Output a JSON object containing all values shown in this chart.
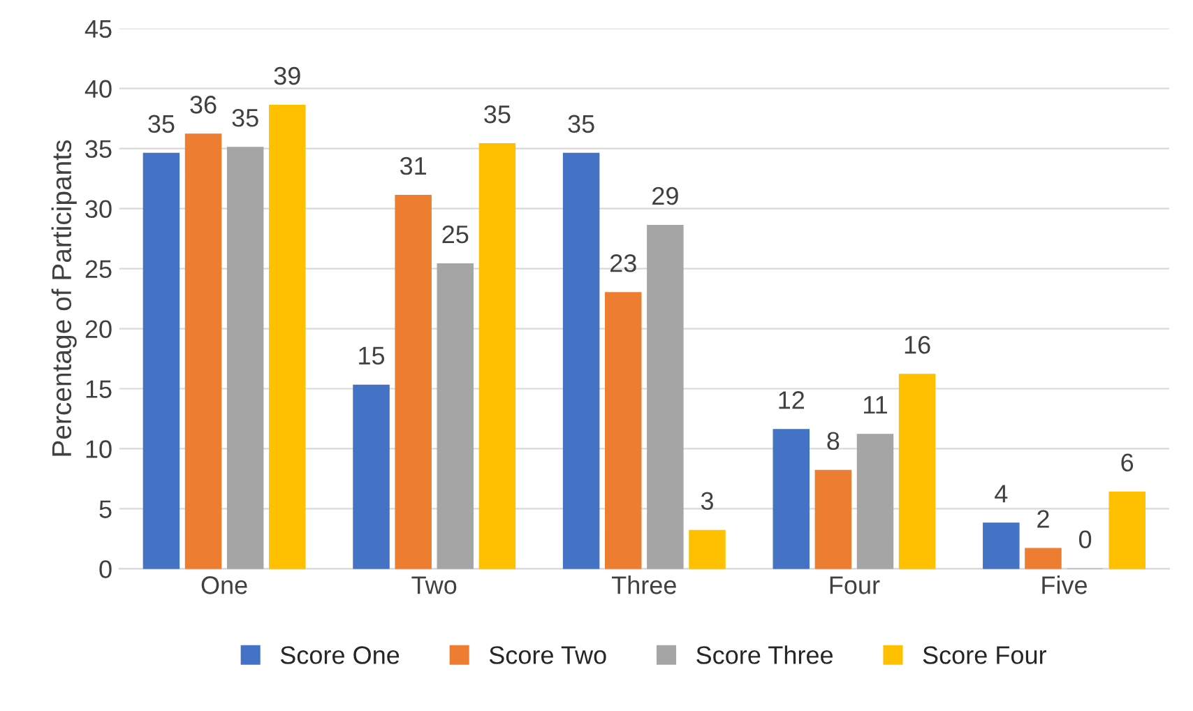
{
  "chart_data": {
    "type": "bar",
    "ylabel": "Percentage of Participants",
    "categories": [
      "One",
      "Two",
      "Three",
      "Four",
      "Five"
    ],
    "series": [
      {
        "name": "Score One",
        "color": "#4472c4",
        "values": [
          34.6,
          15.3,
          34.6,
          11.6,
          3.8
        ],
        "value_labels": [
          "35",
          "15",
          "35",
          "12",
          "4"
        ]
      },
      {
        "name": "Score Two",
        "color": "#ed7d31",
        "values": [
          36.2,
          31.1,
          23.0,
          8.2,
          1.7
        ],
        "value_labels": [
          "36",
          "31",
          "23",
          "8",
          "2"
        ]
      },
      {
        "name": "Score Three",
        "color": "#a5a5a5",
        "values": [
          35.1,
          25.4,
          28.6,
          11.2,
          0
        ],
        "value_labels": [
          "35",
          "25",
          "29",
          "11",
          "0"
        ]
      },
      {
        "name": "Score Four",
        "color": "#ffc000",
        "values": [
          38.6,
          35.4,
          3.2,
          16.2,
          6.4
        ],
        "value_labels": [
          "39",
          "35",
          "3",
          "16",
          "6"
        ]
      }
    ],
    "ylim": [
      0,
      45
    ],
    "yticks": [
      0,
      5,
      10,
      15,
      20,
      25,
      30,
      35,
      40,
      45
    ],
    "grid": "y",
    "legend": "bottom"
  }
}
